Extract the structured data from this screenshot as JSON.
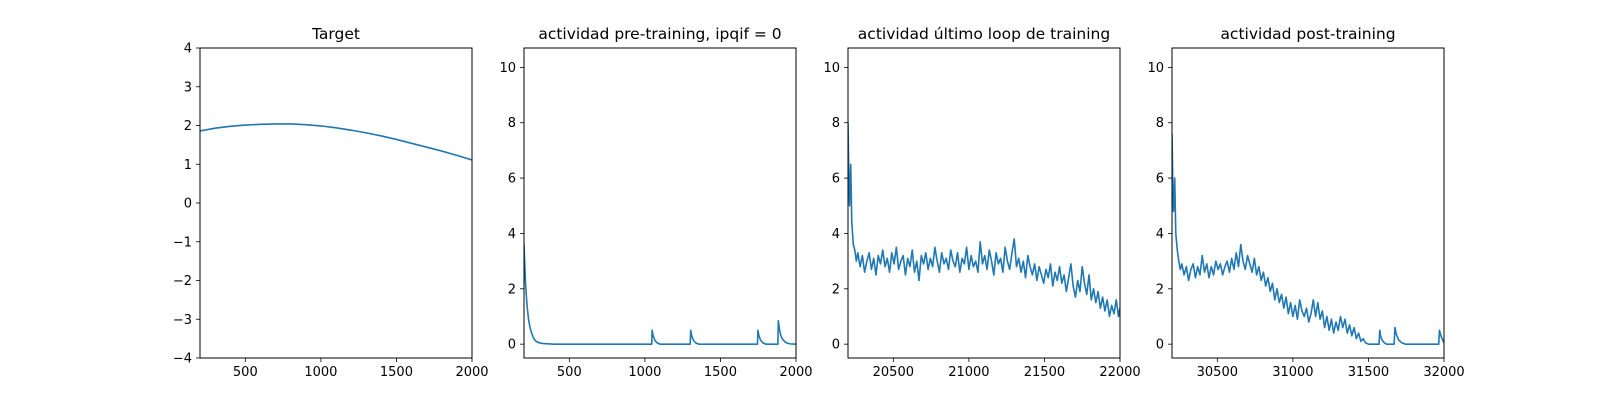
{
  "chart_data": [
    {
      "type": "line",
      "title": "Target",
      "xlabel": "",
      "ylabel": "",
      "xlim": [
        200,
        2000
      ],
      "ylim": [
        -4,
        4
      ],
      "x_ticks": [
        500,
        1000,
        1500,
        2000
      ],
      "y_ticks": [
        -4,
        -3,
        -2,
        -1,
        0,
        1,
        2,
        3,
        4
      ],
      "grid": false,
      "color": "#1f77b4",
      "series": [
        {
          "x": [
            200,
            300,
            400,
            500,
            600,
            700,
            750,
            800,
            900,
            1000,
            1100,
            1200,
            1300,
            1400,
            1500,
            1600,
            1700,
            1800,
            1900,
            2000
          ],
          "values": [
            1.86,
            1.93,
            1.98,
            2.01,
            2.03,
            2.04,
            2.04,
            2.04,
            2.02,
            1.99,
            1.94,
            1.88,
            1.81,
            1.73,
            1.64,
            1.54,
            1.44,
            1.34,
            1.23,
            1.11
          ]
        }
      ]
    },
    {
      "type": "line",
      "title": "actividad pre-training, ipqif = 0",
      "xlabel": "",
      "ylabel": "",
      "xlim": [
        200,
        2000
      ],
      "ylim": [
        -0.5,
        10.7
      ],
      "x_ticks": [
        500,
        1000,
        1500,
        2000
      ],
      "y_ticks": [
        0,
        2,
        4,
        6,
        8,
        10
      ],
      "grid": false,
      "color": "#1f77b4",
      "series": [
        {
          "x": [
            200,
            210,
            220,
            230,
            240,
            250,
            265,
            280,
            300,
            330,
            400,
            600,
            800,
            1000,
            1045,
            1048,
            1055,
            1065,
            1080,
            1100,
            1300,
            1303,
            1310,
            1320,
            1335,
            1355,
            1745,
            1748,
            1755,
            1765,
            1780,
            1800,
            1880,
            1883,
            1890,
            1900,
            1915,
            1935,
            1960,
            2000
          ],
          "values": [
            3.6,
            2.2,
            1.4,
            0.9,
            0.6,
            0.4,
            0.2,
            0.1,
            0.05,
            0.02,
            0.0,
            0.0,
            0.0,
            0.0,
            0.0,
            0.5,
            0.3,
            0.15,
            0.05,
            0.0,
            0.0,
            0.5,
            0.3,
            0.15,
            0.05,
            0.0,
            0.0,
            0.5,
            0.3,
            0.15,
            0.05,
            0.0,
            0.0,
            0.85,
            0.55,
            0.3,
            0.15,
            0.05,
            0.01,
            0.0
          ]
        }
      ]
    },
    {
      "type": "line",
      "title": "actividad último loop de training",
      "xlabel": "",
      "ylabel": "",
      "xlim": [
        20200,
        22000
      ],
      "ylim": [
        -0.5,
        10.7
      ],
      "x_ticks": [
        20500,
        21000,
        21500,
        22000
      ],
      "y_ticks": [
        0,
        2,
        4,
        6,
        8,
        10
      ],
      "grid": false,
      "color": "#1f77b4",
      "series": [
        {
          "x": [
            20200,
            20205,
            20210,
            20218,
            20225,
            20235,
            20245,
            20255,
            20265,
            20280,
            20295,
            20310,
            20325,
            20340,
            20355,
            20370,
            20385,
            20400,
            20415,
            20430,
            20445,
            20460,
            20475,
            20490,
            20505,
            20520,
            20535,
            20550,
            20565,
            20580,
            20595,
            20610,
            20625,
            20640,
            20655,
            20670,
            20685,
            20700,
            20715,
            20730,
            20745,
            20760,
            20775,
            20790,
            20805,
            20820,
            20835,
            20850,
            20865,
            20880,
            20895,
            20910,
            20925,
            20940,
            20955,
            20970,
            20985,
            21000,
            21015,
            21030,
            21045,
            21060,
            21075,
            21090,
            21105,
            21120,
            21135,
            21150,
            21165,
            21180,
            21195,
            21210,
            21225,
            21240,
            21255,
            21270,
            21285,
            21300,
            21315,
            21330,
            21345,
            21360,
            21375,
            21390,
            21405,
            21420,
            21435,
            21450,
            21465,
            21480,
            21495,
            21510,
            21525,
            21540,
            21555,
            21570,
            21585,
            21600,
            21615,
            21630,
            21645,
            21660,
            21675,
            21690,
            21705,
            21720,
            21735,
            21750,
            21765,
            21780,
            21795,
            21810,
            21825,
            21840,
            21855,
            21870,
            21885,
            21900,
            21915,
            21930,
            21945,
            21960,
            21975,
            21990,
            22000
          ],
          "values": [
            8.0,
            6.2,
            5.0,
            6.5,
            4.4,
            3.6,
            3.4,
            3.0,
            3.3,
            2.8,
            3.2,
            2.6,
            3.0,
            3.3,
            2.7,
            3.1,
            2.5,
            3.2,
            2.9,
            3.4,
            2.8,
            3.1,
            2.6,
            3.3,
            2.9,
            3.5,
            2.7,
            3.0,
            3.2,
            2.5,
            3.1,
            2.8,
            3.4,
            2.6,
            3.0,
            2.3,
            3.2,
            2.9,
            3.3,
            2.7,
            3.1,
            2.8,
            3.5,
            3.0,
            2.6,
            3.3,
            2.9,
            3.1,
            2.7,
            3.4,
            3.0,
            2.8,
            3.3,
            2.6,
            3.1,
            2.9,
            3.5,
            2.7,
            3.2,
            2.8,
            3.0,
            2.6,
            3.7,
            2.9,
            3.2,
            2.7,
            3.4,
            3.0,
            2.5,
            3.3,
            2.9,
            3.1,
            2.6,
            3.5,
            3.0,
            2.7,
            3.3,
            3.8,
            2.8,
            3.1,
            2.6,
            3.0,
            2.4,
            3.2,
            2.8,
            2.5,
            2.9,
            2.3,
            2.8,
            2.5,
            2.2,
            2.7,
            2.4,
            2.9,
            2.1,
            2.6,
            2.3,
            2.8,
            2.2,
            2.5,
            1.9,
            2.4,
            2.9,
            2.1,
            1.7,
            2.3,
            1.9,
            2.8,
            2.2,
            1.8,
            2.5,
            1.6,
            2.0,
            1.5,
            1.9,
            1.3,
            1.7,
            1.2,
            1.6,
            1.0,
            1.4,
            1.1,
            1.6,
            1.0,
            1.3
          ]
        }
      ]
    },
    {
      "type": "line",
      "title": "actividad post-training",
      "xlabel": "",
      "ylabel": "",
      "xlim": [
        30200,
        32000
      ],
      "ylim": [
        -0.5,
        10.7
      ],
      "x_ticks": [
        30500,
        31000,
        31500,
        32000
      ],
      "y_ticks": [
        0,
        2,
        4,
        6,
        8,
        10
      ],
      "grid": false,
      "color": "#1f77b4",
      "series": [
        {
          "x": [
            30200,
            30205,
            30210,
            30218,
            30225,
            30235,
            30245,
            30255,
            30265,
            30280,
            30295,
            30310,
            30325,
            30340,
            30355,
            30370,
            30385,
            30400,
            30415,
            30430,
            30445,
            30460,
            30475,
            30490,
            30505,
            30520,
            30535,
            30550,
            30565,
            30580,
            30595,
            30610,
            30625,
            30640,
            30655,
            30670,
            30685,
            30700,
            30715,
            30730,
            30745,
            30760,
            30775,
            30790,
            30805,
            30820,
            30835,
            30850,
            30865,
            30880,
            30895,
            30910,
            30925,
            30940,
            30955,
            30970,
            30985,
            31000,
            31015,
            31030,
            31045,
            31060,
            31075,
            31090,
            31105,
            31120,
            31135,
            31150,
            31165,
            31180,
            31195,
            31210,
            31225,
            31240,
            31255,
            31270,
            31285,
            31300,
            31315,
            31330,
            31345,
            31360,
            31375,
            31390,
            31405,
            31420,
            31435,
            31450,
            31465,
            31480,
            31500,
            31530,
            31570,
            31575,
            31580,
            31590,
            31605,
            31620,
            31640,
            31670,
            31675,
            31685,
            31700,
            31720,
            31745,
            31900,
            31965,
            31970,
            31980,
            31995,
            32000
          ],
          "values": [
            7.6,
            5.8,
            4.8,
            6.0,
            4.0,
            3.4,
            3.0,
            2.7,
            2.9,
            2.5,
            2.8,
            2.3,
            2.7,
            2.9,
            2.4,
            2.8,
            2.5,
            3.2,
            2.6,
            2.9,
            2.4,
            2.8,
            2.5,
            3.0,
            2.7,
            2.9,
            2.5,
            2.8,
            3.0,
            2.6,
            3.1,
            2.7,
            3.3,
            2.8,
            3.6,
            3.0,
            2.7,
            3.2,
            2.9,
            2.6,
            3.1,
            2.5,
            2.8,
            2.3,
            2.6,
            2.1,
            2.4,
            1.9,
            2.2,
            1.6,
            2.0,
            1.5,
            1.8,
            1.3,
            1.7,
            1.1,
            1.5,
            1.0,
            1.4,
            0.9,
            1.6,
            1.2,
            1.0,
            1.3,
            0.8,
            1.1,
            1.6,
            1.0,
            1.5,
            0.9,
            1.2,
            0.6,
            1.0,
            0.5,
            0.9,
            0.4,
            0.8,
            0.5,
            1.0,
            0.6,
            0.9,
            0.4,
            0.7,
            0.3,
            0.6,
            0.2,
            0.4,
            0.1,
            0.2,
            0.05,
            0.0,
            0.0,
            0.0,
            0.5,
            0.3,
            0.15,
            0.05,
            0.0,
            0.0,
            0.0,
            0.6,
            0.35,
            0.15,
            0.05,
            0.0,
            0.0,
            0.0,
            0.5,
            0.3,
            0.1,
            0.05
          ]
        }
      ]
    }
  ]
}
